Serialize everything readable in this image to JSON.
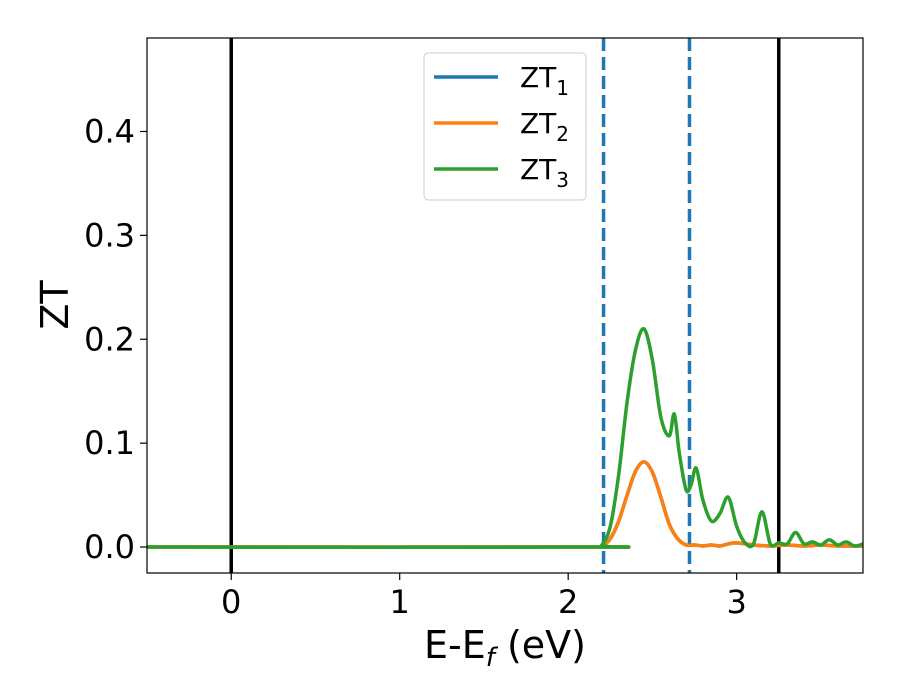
{
  "chart_data": {
    "type": "line",
    "xlabel": "E-E",
    "xlabel_sub": "f",
    "xlabel_unit": " (eV)",
    "ylabel": "ZT",
    "xlim": [
      -0.5,
      3.75
    ],
    "ylim": [
      -0.025,
      0.49
    ],
    "xticks": [
      0,
      1,
      2,
      3
    ],
    "yticks": [
      0.0,
      0.1,
      0.2,
      0.3,
      0.4
    ],
    "xtick_labels": [
      "0",
      "1",
      "2",
      "3"
    ],
    "ytick_labels": [
      "0.0",
      "0.1",
      "0.2",
      "0.3",
      "0.4"
    ],
    "grid": false,
    "legend": "upper-center",
    "vlines": [
      {
        "x": 0.0,
        "style": "solid",
        "color": "#000000"
      },
      {
        "x": 3.25,
        "style": "solid",
        "color": "#000000"
      },
      {
        "x": 2.21,
        "style": "dashed",
        "color": "#1f77b4"
      },
      {
        "x": 2.72,
        "style": "dashed",
        "color": "#1f77b4"
      }
    ],
    "series": [
      {
        "name": "ZT",
        "sub": "1",
        "color": "#1f77b4",
        "x": [
          -0.5,
          2.15,
          2.2,
          2.25,
          2.3,
          2.35,
          2.4,
          2.45,
          2.5,
          2.55,
          2.6,
          2.65,
          2.7,
          2.75,
          2.8,
          2.85,
          2.9,
          2.95,
          3.0,
          3.1,
          3.2,
          3.3,
          3.4,
          3.5,
          3.6,
          3.75
        ],
        "y": [
          0,
          0,
          0.001,
          0.008,
          0.025,
          0.05,
          0.073,
          0.082,
          0.072,
          0.048,
          0.022,
          0.008,
          0.002,
          0.002,
          0.001,
          0.002,
          0.001,
          0.003,
          0.004,
          0.002,
          0.001,
          0.002,
          0.001,
          0.002,
          0.001,
          0.001
        ]
      },
      {
        "name": "ZT",
        "sub": "2",
        "color": "#ff7f0e",
        "x": [
          -0.5,
          2.15,
          2.2,
          2.25,
          2.3,
          2.35,
          2.4,
          2.45,
          2.5,
          2.55,
          2.6,
          2.65,
          2.7,
          2.75,
          2.8,
          2.85,
          2.9,
          2.95,
          3.0,
          3.1,
          3.2,
          3.3,
          3.4,
          3.5,
          3.6,
          3.75
        ],
        "y": [
          0,
          0,
          0.001,
          0.008,
          0.025,
          0.05,
          0.073,
          0.082,
          0.072,
          0.048,
          0.022,
          0.008,
          0.002,
          0.002,
          0.001,
          0.002,
          0.001,
          0.003,
          0.004,
          0.002,
          0.001,
          0.002,
          0.001,
          0.002,
          0.001,
          0.001
        ]
      },
      {
        "name": "ZT",
        "sub": "3",
        "color": "#2ca02c",
        "x": [
          -0.5,
          2.15,
          2.2,
          2.25,
          2.3,
          2.35,
          2.4,
          2.45,
          2.5,
          2.55,
          2.6,
          2.63,
          2.66,
          2.7,
          2.73,
          2.76,
          2.8,
          2.85,
          2.9,
          2.95,
          3.0,
          3.05,
          3.1,
          3.15,
          3.2,
          3.25,
          3.3,
          3.35,
          3.4,
          3.45,
          3.5,
          3.55,
          3.6,
          3.65,
          3.7,
          3.75
        ],
        "y": [
          0,
          0,
          0.002,
          0.02,
          0.07,
          0.14,
          0.19,
          0.21,
          0.18,
          0.125,
          0.107,
          0.128,
          0.09,
          0.055,
          0.06,
          0.076,
          0.045,
          0.025,
          0.032,
          0.048,
          0.02,
          0.004,
          0.003,
          0.034,
          0.003,
          0.004,
          0.003,
          0.014,
          0.003,
          0.005,
          0.002,
          0.007,
          0.002,
          0.005,
          0.001,
          0.003
        ]
      }
    ]
  }
}
